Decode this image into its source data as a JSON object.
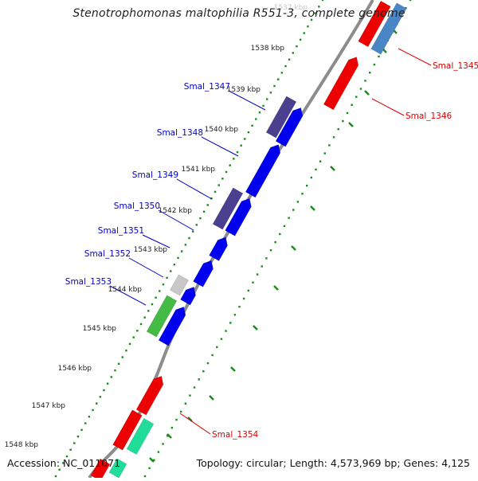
{
  "title": "Stenotrophomonas maltophilia R551-3, complete genome",
  "footer": {
    "accession": "Accession: NC_011071",
    "summary": "Topology: circular; Length: 4,573,969 bp; Genes: 4,125"
  },
  "colors": {
    "ruler_dots": "#1a8c1a",
    "backbone": "#8c8c8c",
    "label_left": "#0000cc",
    "label_right": "#dd0000",
    "gene_blue": "#0000ee",
    "gene_purple": "#4b3f8f",
    "gene_red": "#ee0000",
    "gene_steelblue": "#4a86c5",
    "gene_green": "#44bb44",
    "gene_grey": "#c8c8c8",
    "gene_teal": "#22dd99"
  },
  "kbp_ticks": [
    "1537 kbp",
    "1538 kbp",
    "1539 kbp",
    "1540 kbp",
    "1541 kbp",
    "1542 kbp",
    "1543 kbp",
    "1544 kbp",
    "1545 kbp",
    "1546 kbp",
    "1547 kbp",
    "1548 kbp"
  ],
  "left_labels": [
    "Smal_1347",
    "Smal_1348",
    "Smal_1349",
    "Smal_1350",
    "Smal_1351",
    "Smal_1352",
    "Smal_1353"
  ],
  "right_labels": [
    "Smal_1345",
    "Smal_1346",
    "Smal_1354"
  ]
}
